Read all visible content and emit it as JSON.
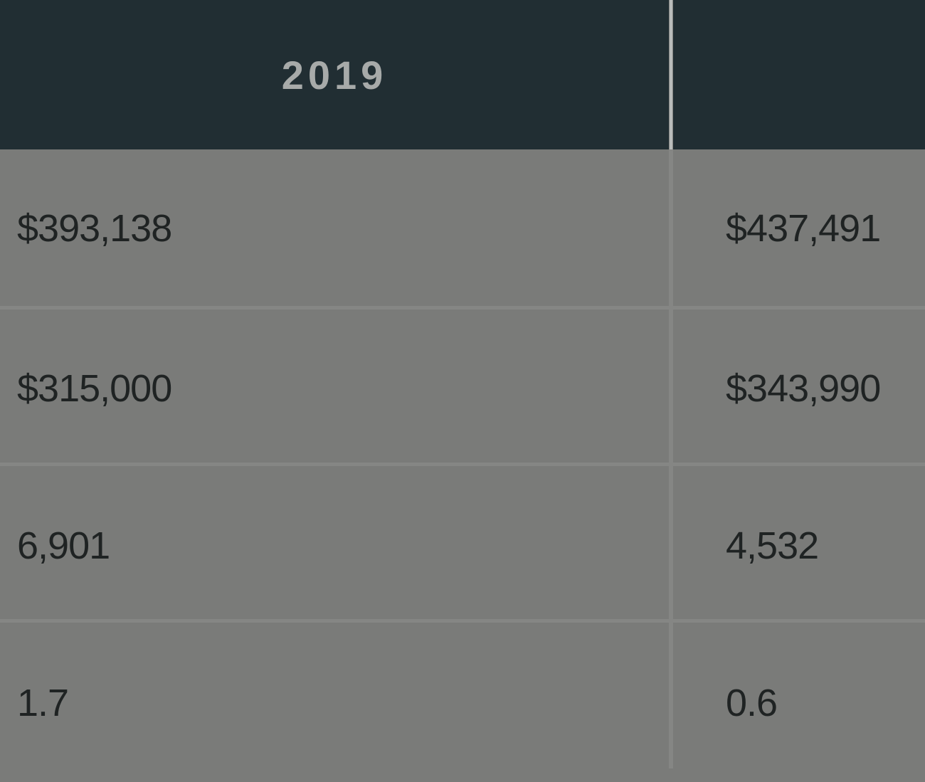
{
  "table": {
    "headers": [
      "2019",
      ""
    ],
    "rows": [
      [
        "$393,138",
        "$437,491"
      ],
      [
        "$315,000",
        "$343,990"
      ],
      [
        "6,901",
        "4,532"
      ],
      [
        "1.7",
        "0.6"
      ]
    ]
  },
  "colors": {
    "header_background": "#212e33",
    "header_text": "#a7aaa9",
    "body_background": "#7a7b79",
    "body_text": "#1f2323",
    "grid_lines": "#858684"
  }
}
